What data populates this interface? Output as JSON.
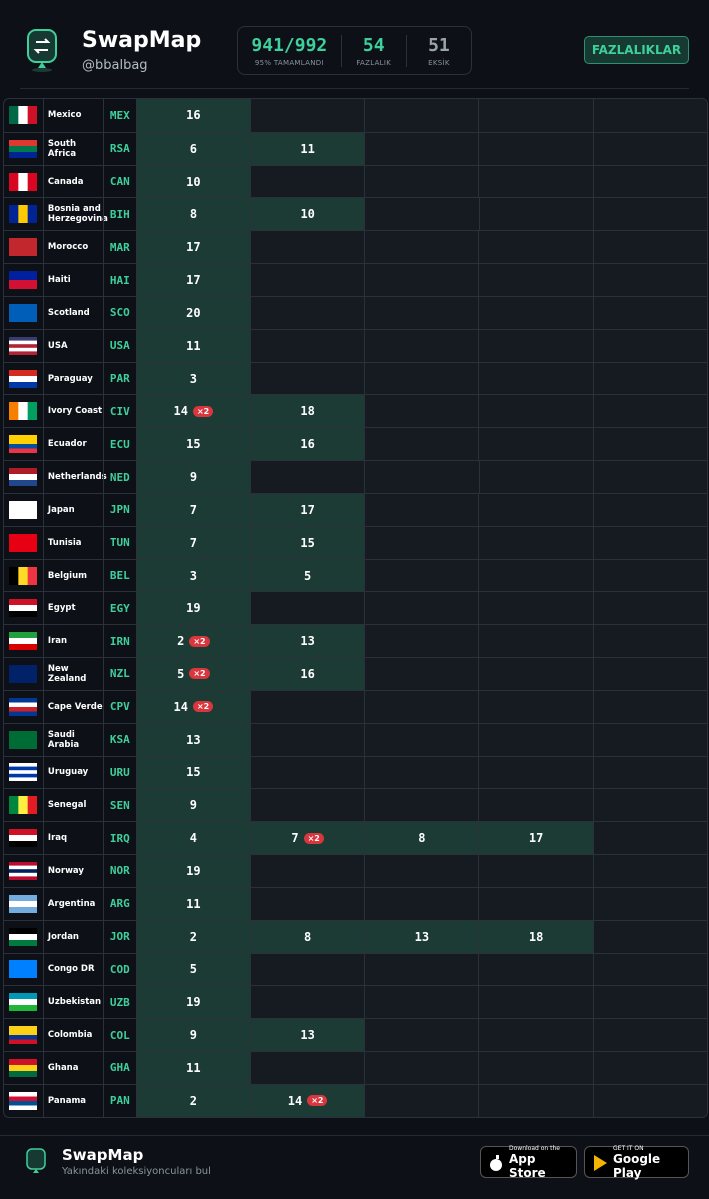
{
  "header": {
    "app_name": "SwapMap",
    "handle": "@bbalbag",
    "stats": [
      {
        "value": "941/992",
        "label": "95% TAMAMLANDI",
        "color": "#3ecf9a"
      },
      {
        "value": "54",
        "label": "FAZLALIK",
        "color": "#3ecf9a"
      },
      {
        "value": "51",
        "label": "EKSİK",
        "color": "#9aa3ad"
      }
    ],
    "button": "FAZLALIKLAR"
  },
  "rows": [
    {
      "country": "Mexico",
      "code": "MEX",
      "flag": {
        "stripes": "v",
        "colors": [
          "#006847",
          "#ffffff",
          "#ce1126"
        ]
      },
      "cells": [
        {
          "value": "16"
        }
      ]
    },
    {
      "country": "South Africa",
      "code": "RSA",
      "flag": {
        "stripes": "h",
        "colors": [
          "#de3831",
          "#007a4d",
          "#002395"
        ]
      },
      "cells": [
        {
          "value": "6"
        },
        {
          "value": "11"
        }
      ]
    },
    {
      "country": "Canada",
      "code": "CAN",
      "flag": {
        "stripes": "v",
        "colors": [
          "#d80621",
          "#ffffff",
          "#d80621"
        ]
      },
      "cells": [
        {
          "value": "10"
        }
      ]
    },
    {
      "country": "Bosnia and Herzegovina",
      "code": "BIH",
      "flag": {
        "stripes": "v",
        "colors": [
          "#002395",
          "#fecb00",
          "#002395"
        ]
      },
      "cells": [
        {
          "value": "8"
        },
        {
          "value": "10"
        }
      ]
    },
    {
      "country": "Morocco",
      "code": "MAR",
      "flag": {
        "stripes": "h",
        "colors": [
          "#c1272d"
        ]
      },
      "cells": [
        {
          "value": "17"
        }
      ]
    },
    {
      "country": "Haiti",
      "code": "HAI",
      "flag": {
        "stripes": "h",
        "colors": [
          "#00209f",
          "#d21034"
        ]
      },
      "cells": [
        {
          "value": "17"
        }
      ]
    },
    {
      "country": "Scotland",
      "code": "SCO",
      "flag": {
        "stripes": "h",
        "colors": [
          "#005eb8"
        ]
      },
      "cells": [
        {
          "value": "20"
        }
      ]
    },
    {
      "country": "USA",
      "code": "USA",
      "flag": {
        "stripes": "h",
        "colors": [
          "#3c3b6e",
          "#ffffff",
          "#b22234",
          "#ffffff",
          "#b22234"
        ]
      },
      "cells": [
        {
          "value": "11"
        }
      ]
    },
    {
      "country": "Paraguay",
      "code": "PAR",
      "flag": {
        "stripes": "h",
        "colors": [
          "#d52b1e",
          "#ffffff",
          "#0038a8"
        ]
      },
      "cells": [
        {
          "value": "3"
        }
      ]
    },
    {
      "country": "Ivory Coast",
      "code": "CIV",
      "flag": {
        "stripes": "v",
        "colors": [
          "#f77f00",
          "#ffffff",
          "#009e60"
        ]
      },
      "cells": [
        {
          "value": "14",
          "badge": "×2"
        },
        {
          "value": "18"
        }
      ]
    },
    {
      "country": "Ecuador",
      "code": "ECU",
      "flag": {
        "stripes": "h",
        "colors": [
          "#ffd100",
          "#ffd100",
          "#034ea2",
          "#ef3340"
        ]
      },
      "cells": [
        {
          "value": "15"
        },
        {
          "value": "16"
        }
      ]
    },
    {
      "country": "Netherlands",
      "code": "NED",
      "flag": {
        "stripes": "h",
        "colors": [
          "#ae1c28",
          "#ffffff",
          "#21468b"
        ]
      },
      "cells": [
        {
          "value": "9"
        }
      ]
    },
    {
      "country": "Japan",
      "code": "JPN",
      "flag": {
        "stripes": "h",
        "colors": [
          "#ffffff"
        ]
      },
      "cells": [
        {
          "value": "7"
        },
        {
          "value": "17"
        }
      ]
    },
    {
      "country": "Tunisia",
      "code": "TUN",
      "flag": {
        "stripes": "h",
        "colors": [
          "#e70013"
        ]
      },
      "cells": [
        {
          "value": "7"
        },
        {
          "value": "15"
        }
      ]
    },
    {
      "country": "Belgium",
      "code": "BEL",
      "flag": {
        "stripes": "v",
        "colors": [
          "#000000",
          "#fdda24",
          "#ef3340"
        ]
      },
      "cells": [
        {
          "value": "3"
        },
        {
          "value": "5"
        }
      ]
    },
    {
      "country": "Egypt",
      "code": "EGY",
      "flag": {
        "stripes": "h",
        "colors": [
          "#ce1126",
          "#ffffff",
          "#000000"
        ]
      },
      "cells": [
        {
          "value": "19"
        }
      ]
    },
    {
      "country": "Iran",
      "code": "IRN",
      "flag": {
        "stripes": "h",
        "colors": [
          "#239f40",
          "#ffffff",
          "#da0000"
        ]
      },
      "cells": [
        {
          "value": "2",
          "badge": "×2"
        },
        {
          "value": "13"
        }
      ]
    },
    {
      "country": "New Zealand",
      "code": "NZL",
      "flag": {
        "stripes": "h",
        "colors": [
          "#012169"
        ]
      },
      "cells": [
        {
          "value": "5",
          "badge": "×2"
        },
        {
          "value": "16"
        }
      ]
    },
    {
      "country": "Cape Verde",
      "code": "CPV",
      "flag": {
        "stripes": "h",
        "colors": [
          "#003893",
          "#ffffff",
          "#cf2027",
          "#003893"
        ]
      },
      "cells": [
        {
          "value": "14",
          "badge": "×2"
        }
      ]
    },
    {
      "country": "Saudi Arabia",
      "code": "KSA",
      "flag": {
        "stripes": "h",
        "colors": [
          "#006c35"
        ]
      },
      "cells": [
        {
          "value": "13"
        }
      ]
    },
    {
      "country": "Uruguay",
      "code": "URU",
      "flag": {
        "stripes": "h",
        "colors": [
          "#ffffff",
          "#0038a8",
          "#ffffff",
          "#0038a8",
          "#ffffff"
        ]
      },
      "cells": [
        {
          "value": "15"
        }
      ]
    },
    {
      "country": "Senegal",
      "code": "SEN",
      "flag": {
        "stripes": "v",
        "colors": [
          "#00853f",
          "#fdef42",
          "#e31b23"
        ]
      },
      "cells": [
        {
          "value": "9"
        }
      ]
    },
    {
      "country": "Iraq",
      "code": "IRQ",
      "flag": {
        "stripes": "h",
        "colors": [
          "#ce1126",
          "#ffffff",
          "#000000"
        ]
      },
      "cells": [
        {
          "value": "4"
        },
        {
          "value": "7",
          "badge": "×2"
        },
        {
          "value": "8"
        },
        {
          "value": "17"
        }
      ]
    },
    {
      "country": "Norway",
      "code": "NOR",
      "flag": {
        "stripes": "h",
        "colors": [
          "#ba0c2f",
          "#ffffff",
          "#00205b",
          "#ffffff",
          "#ba0c2f"
        ]
      },
      "cells": [
        {
          "value": "19"
        }
      ]
    },
    {
      "country": "Argentina",
      "code": "ARG",
      "flag": {
        "stripes": "h",
        "colors": [
          "#74acdf",
          "#ffffff",
          "#74acdf"
        ]
      },
      "cells": [
        {
          "value": "11"
        }
      ]
    },
    {
      "country": "Jordan",
      "code": "JOR",
      "flag": {
        "stripes": "h",
        "colors": [
          "#000000",
          "#ffffff",
          "#007a3d"
        ]
      },
      "cells": [
        {
          "value": "2"
        },
        {
          "value": "8"
        },
        {
          "value": "13"
        },
        {
          "value": "18"
        }
      ]
    },
    {
      "country": "Congo DR",
      "code": "COD",
      "flag": {
        "stripes": "h",
        "colors": [
          "#007fff"
        ]
      },
      "cells": [
        {
          "value": "5"
        }
      ]
    },
    {
      "country": "Uzbekistan",
      "code": "UZB",
      "flag": {
        "stripes": "h",
        "colors": [
          "#0099b5",
          "#ffffff",
          "#1eb53a"
        ]
      },
      "cells": [
        {
          "value": "19"
        }
      ]
    },
    {
      "country": "Colombia",
      "code": "COL",
      "flag": {
        "stripes": "h",
        "colors": [
          "#fcd116",
          "#fcd116",
          "#003893",
          "#ce1126"
        ]
      },
      "cells": [
        {
          "value": "9"
        },
        {
          "value": "13"
        }
      ]
    },
    {
      "country": "Ghana",
      "code": "GHA",
      "flag": {
        "stripes": "h",
        "colors": [
          "#ce1126",
          "#fcd116",
          "#006b3f"
        ]
      },
      "cells": [
        {
          "value": "11"
        }
      ]
    },
    {
      "country": "Panama",
      "code": "PAN",
      "flag": {
        "stripes": "h",
        "colors": [
          "#ffffff",
          "#d21034",
          "#005293",
          "#ffffff"
        ]
      },
      "cells": [
        {
          "value": "2"
        },
        {
          "value": "14",
          "badge": "×2"
        }
      ]
    }
  ],
  "footer": {
    "app_name": "SwapMap",
    "tagline": "Yakındaki koleksiyoncuları bul",
    "stores": [
      {
        "small": "Download on the",
        "big": "App Store"
      },
      {
        "small": "GET IT ON",
        "big": "Google Play"
      }
    ]
  }
}
